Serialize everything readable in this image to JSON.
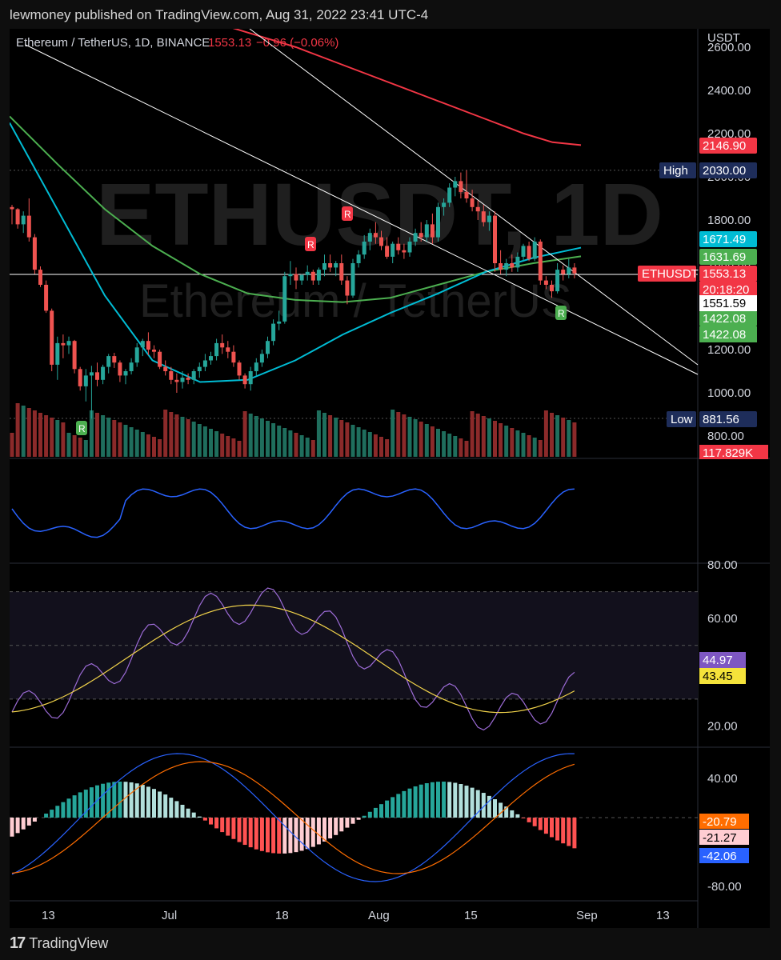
{
  "header": {
    "publisher": "lewmoney published on TradingView.com, Aug 31, 2022 23:41 UTC-4"
  },
  "chart_data": {
    "type": "candlestick",
    "title": "Ethereum / TetherUS, 1D, BINANCE",
    "price": "1553.13",
    "change": "−0.96 (−0.06%)",
    "watermark": "ETHUSDT, 1D",
    "watermark_sub": "Ethereum / TetherUS",
    "currency": "USDT",
    "price_axis_ticks": [
      "2600.00",
      "2400.00",
      "2200.00",
      "2000.00",
      "1800.00",
      "1600.00",
      "1400.00",
      "1200.00",
      "1000.00",
      "800.00"
    ],
    "price_labels": [
      {
        "label": "",
        "value": "2146.90",
        "color": "#f23645",
        "price": 2146.9
      },
      {
        "label": "High",
        "value": "2030.00",
        "color": "#1e2d5a",
        "price": 2030
      },
      {
        "label": "",
        "value": "1671.49",
        "color": "#00bcd4",
        "price": 1671.49
      },
      {
        "label": "",
        "value": "1631.69",
        "color": "#4caf50",
        "price": 1631.69
      },
      {
        "label": "ETHUSDT",
        "value": "1553.13",
        "color": "#f23645",
        "price": 1553.13
      },
      {
        "label": "",
        "value": "1422.08",
        "color": "#4caf50",
        "price": 1422.08
      },
      {
        "label": "Low",
        "value": "881.56",
        "color": "#1e2d5a",
        "price": 881.56
      }
    ],
    "countdown": "20:18:20",
    "crosshair_price": "1551.59",
    "second_1422": "1422.08",
    "volume_label": "117.829K",
    "x_ticks": [
      "13",
      "Jul",
      "18",
      "Aug",
      "15",
      "Sep",
      "13"
    ],
    "candles": [
      [
        1860,
        1870,
        1780,
        1850
      ],
      [
        1850,
        1855,
        1760,
        1780
      ],
      [
        1780,
        1840,
        1740,
        1820
      ],
      [
        1820,
        1900,
        1700,
        1720
      ],
      [
        1720,
        1735,
        1550,
        1570
      ],
      [
        1570,
        1585,
        1490,
        1500
      ],
      [
        1500,
        1520,
        1370,
        1380
      ],
      [
        1380,
        1390,
        1100,
        1130
      ],
      [
        1130,
        1260,
        1060,
        1230
      ],
      [
        1230,
        1270,
        1160,
        1220
      ],
      [
        1220,
        1260,
        1180,
        1240
      ],
      [
        1240,
        1245,
        1090,
        1110
      ],
      [
        1110,
        1120,
        1010,
        1030
      ],
      [
        1030,
        1110,
        960,
        1080
      ],
      [
        1080,
        1125,
        880,
        1095
      ],
      [
        1095,
        1140,
        1030,
        1060
      ],
      [
        1060,
        1130,
        1040,
        1120
      ],
      [
        1120,
        1180,
        1090,
        1170
      ],
      [
        1170,
        1185,
        1115,
        1140
      ],
      [
        1140,
        1150,
        1050,
        1080
      ],
      [
        1080,
        1110,
        1040,
        1100
      ],
      [
        1100,
        1160,
        1085,
        1140
      ],
      [
        1140,
        1230,
        1120,
        1210
      ],
      [
        1210,
        1250,
        1170,
        1240
      ],
      [
        1240,
        1280,
        1175,
        1200
      ],
      [
        1200,
        1220,
        1160,
        1190
      ],
      [
        1190,
        1200,
        1110,
        1120
      ],
      [
        1120,
        1150,
        1080,
        1100
      ],
      [
        1100,
        1120,
        1040,
        1060
      ],
      [
        1060,
        1090,
        1000,
        1050
      ],
      [
        1050,
        1100,
        1020,
        1070
      ],
      [
        1070,
        1090,
        1040,
        1060
      ],
      [
        1060,
        1110,
        1040,
        1100
      ],
      [
        1100,
        1140,
        1070,
        1120
      ],
      [
        1120,
        1180,
        1100,
        1150
      ],
      [
        1150,
        1190,
        1130,
        1170
      ],
      [
        1170,
        1250,
        1150,
        1230
      ],
      [
        1230,
        1270,
        1180,
        1210
      ],
      [
        1210,
        1240,
        1160,
        1190
      ],
      [
        1190,
        1220,
        1120,
        1140
      ],
      [
        1140,
        1150,
        1060,
        1080
      ],
      [
        1080,
        1090,
        1020,
        1040
      ],
      [
        1040,
        1120,
        1010,
        1100
      ],
      [
        1100,
        1160,
        1080,
        1140
      ],
      [
        1140,
        1200,
        1120,
        1180
      ],
      [
        1180,
        1260,
        1160,
        1240
      ],
      [
        1240,
        1340,
        1220,
        1320
      ],
      [
        1320,
        1380,
        1290,
        1330
      ],
      [
        1330,
        1560,
        1320,
        1540
      ],
      [
        1540,
        1610,
        1500,
        1550
      ],
      [
        1550,
        1580,
        1480,
        1520
      ],
      [
        1520,
        1550,
        1500,
        1545
      ],
      [
        1545,
        1590,
        1520,
        1560
      ],
      [
        1560,
        1570,
        1500,
        1520
      ],
      [
        1520,
        1580,
        1500,
        1570
      ],
      [
        1570,
        1640,
        1540,
        1600
      ],
      [
        1600,
        1640,
        1560,
        1580
      ],
      [
        1580,
        1610,
        1540,
        1600
      ],
      [
        1600,
        1640,
        1500,
        1520
      ],
      [
        1520,
        1540,
        1410,
        1450
      ],
      [
        1450,
        1620,
        1440,
        1600
      ],
      [
        1600,
        1660,
        1580,
        1640
      ],
      [
        1640,
        1730,
        1620,
        1700
      ],
      [
        1700,
        1760,
        1660,
        1740
      ],
      [
        1740,
        1790,
        1690,
        1720
      ],
      [
        1720,
        1750,
        1660,
        1680
      ],
      [
        1680,
        1720,
        1620,
        1630
      ],
      [
        1630,
        1700,
        1600,
        1690
      ],
      [
        1690,
        1720,
        1640,
        1660
      ],
      [
        1660,
        1690,
        1620,
        1650
      ],
      [
        1650,
        1720,
        1630,
        1700
      ],
      [
        1700,
        1760,
        1680,
        1740
      ],
      [
        1740,
        1790,
        1700,
        1720
      ],
      [
        1720,
        1800,
        1700,
        1780
      ],
      [
        1780,
        1830,
        1690,
        1720
      ],
      [
        1720,
        1880,
        1700,
        1860
      ],
      [
        1860,
        1900,
        1820,
        1880
      ],
      [
        1880,
        1970,
        1860,
        1950
      ],
      [
        1950,
        2000,
        1910,
        1980
      ],
      [
        1980,
        2020,
        1900,
        1930
      ],
      [
        1930,
        2030,
        1880,
        1900
      ],
      [
        1900,
        1940,
        1840,
        1860
      ],
      [
        1860,
        1890,
        1800,
        1840
      ],
      [
        1840,
        1870,
        1770,
        1790
      ],
      [
        1790,
        1840,
        1750,
        1820
      ],
      [
        1820,
        1840,
        1560,
        1600
      ],
      [
        1600,
        1660,
        1550,
        1570
      ],
      [
        1570,
        1620,
        1540,
        1600
      ],
      [
        1600,
        1640,
        1560,
        1580
      ],
      [
        1580,
        1650,
        1560,
        1630
      ],
      [
        1630,
        1690,
        1610,
        1680
      ],
      [
        1680,
        1700,
        1610,
        1620
      ],
      [
        1620,
        1720,
        1610,
        1700
      ],
      [
        1700,
        1710,
        1500,
        1520
      ],
      [
        1520,
        1540,
        1480,
        1500
      ],
      [
        1500,
        1520,
        1440,
        1470
      ],
      [
        1470,
        1600,
        1460,
        1570
      ],
      [
        1570,
        1590,
        1520,
        1550
      ],
      [
        1550,
        1620,
        1530,
        1580
      ],
      [
        1580,
        1600,
        1530,
        1553
      ]
    ],
    "sma200": [
      2800,
      2760,
      2720,
      2680,
      2640,
      2600,
      2550,
      2500,
      2450,
      2400,
      2350,
      2300,
      2250,
      2200,
      2160,
      2146.9
    ],
    "ema50": [
      2250,
      1850,
      1450,
      1150,
      1050,
      1060,
      1150,
      1270,
      1370,
      1460,
      1560,
      1625,
      1672
    ],
    "ema100": [
      2280,
      2060,
      1850,
      1680,
      1550,
      1460,
      1430,
      1420,
      1440,
      1500,
      1560,
      1600,
      1632
    ],
    "rsi": {
      "value": "44.97",
      "ma": "43.45",
      "ticks": [
        "80.00",
        "60.00",
        "20.00"
      ]
    },
    "macd": {
      "hist": "-20.79",
      "signal": "-21.27",
      "macd": "-42.06",
      "ticks": [
        "40.00",
        "-80.00"
      ]
    }
  }
}
